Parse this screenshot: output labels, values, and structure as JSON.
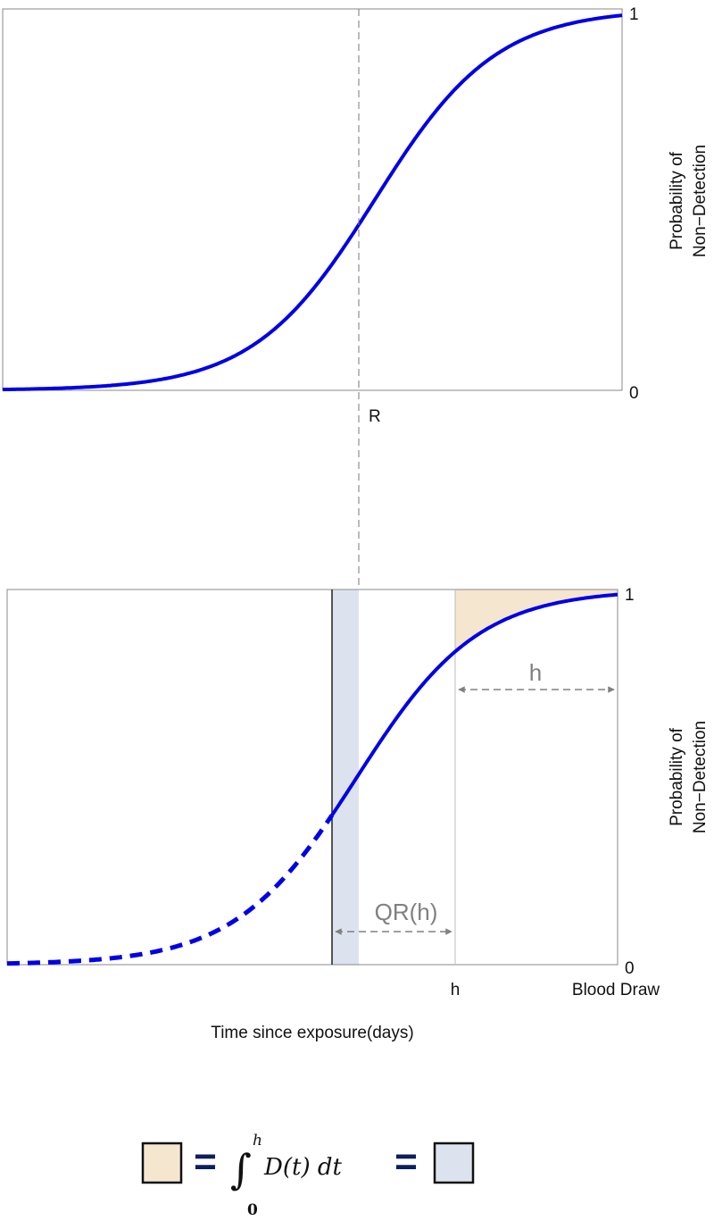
{
  "top_panel": {
    "y_label": [
      "Probability of",
      "Non−Detection"
    ],
    "y_max_label": "1",
    "y_min_label": "0",
    "x_marker": "R"
  },
  "bottom_panel": {
    "y_label": [
      "Probability of",
      "Non−Detection"
    ],
    "y_max_label": "1",
    "y_min_label": "0",
    "x_labels": [
      "h",
      "Blood Draw"
    ],
    "h_arrow_label": "h",
    "qr_label": "QR(h)",
    "x_axis_title": "Time since exposure(days)"
  },
  "formula": {
    "equals": "=",
    "integral_sign": "∫",
    "integral_lower": "0",
    "integral_upper": "h",
    "integrand": "D(t) dt"
  }
}
